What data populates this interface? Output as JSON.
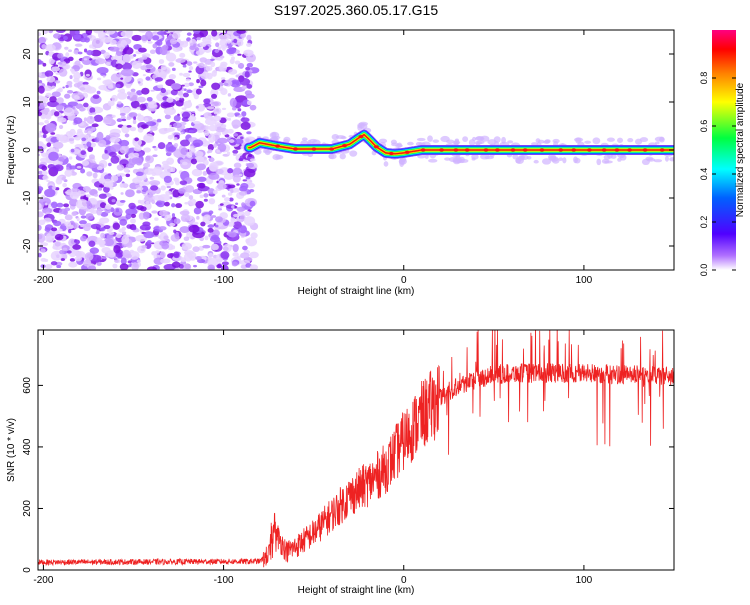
{
  "title": "S197.2025.360.05.17.G15",
  "chart_data": [
    {
      "type": "heatmap",
      "name": "spectrogram",
      "xlabel": "Height of straight line (km)",
      "ylabel": "Frequency (Hz)",
      "xlim": [
        -203,
        150
      ],
      "ylim": [
        -25,
        25
      ],
      "xticks": [
        -200,
        -100,
        0,
        100
      ],
      "yticks": [
        -20,
        -10,
        0,
        10,
        20
      ],
      "colorbar": {
        "label": "Normalized spectral amplitude",
        "range": [
          0,
          1
        ],
        "ticks": [
          0.0,
          0.2,
          0.4,
          0.6,
          0.8
        ],
        "tick_labels": [
          "0.0",
          "0.2",
          "0.4",
          "0.6",
          "0.8"
        ],
        "colors": [
          "#ffffff",
          "#8a00ff",
          "#0000ff",
          "#00ffff",
          "#00ff00",
          "#ffff00",
          "#ff7f00",
          "#ff0000",
          "#ff0080"
        ]
      },
      "ridge": {
        "description_height_km": [
          -85,
          -80,
          -70,
          -60,
          -50,
          -40,
          -30,
          -25,
          -22,
          -20,
          -15,
          -10,
          -5,
          0,
          10,
          50,
          100,
          150
        ],
        "frequency_hz": [
          0.5,
          1.5,
          0.8,
          0.2,
          0.2,
          0.2,
          1.2,
          2.5,
          3.2,
          2.5,
          0.6,
          -0.6,
          -0.8,
          -0.6,
          0.0,
          0.0,
          0.0,
          0.0
        ]
      },
      "noise_region_km": [
        -203,
        -83
      ]
    },
    {
      "type": "line",
      "name": "snr",
      "xlabel": "Height of straight line (km)",
      "ylabel": "SNR (10 * v/v)",
      "xlim": [
        -203,
        150
      ],
      "ylim": [
        0,
        780
      ],
      "xticks": [
        -200,
        -100,
        0,
        100
      ],
      "yticks": [
        0,
        200,
        400,
        600
      ],
      "color": "#ee2222",
      "envelope": {
        "x_km": [
          -203,
          -80,
          -75,
          -70,
          -65,
          -60,
          -50,
          -40,
          -30,
          -20,
          -10,
          0,
          10,
          20,
          30,
          40,
          50,
          60,
          80,
          100,
          120,
          150
        ],
        "snr_mean": [
          25,
          28,
          50,
          110,
          60,
          75,
          120,
          180,
          240,
          280,
          330,
          420,
          500,
          560,
          600,
          620,
          635,
          640,
          640,
          640,
          635,
          630
        ]
      }
    }
  ]
}
